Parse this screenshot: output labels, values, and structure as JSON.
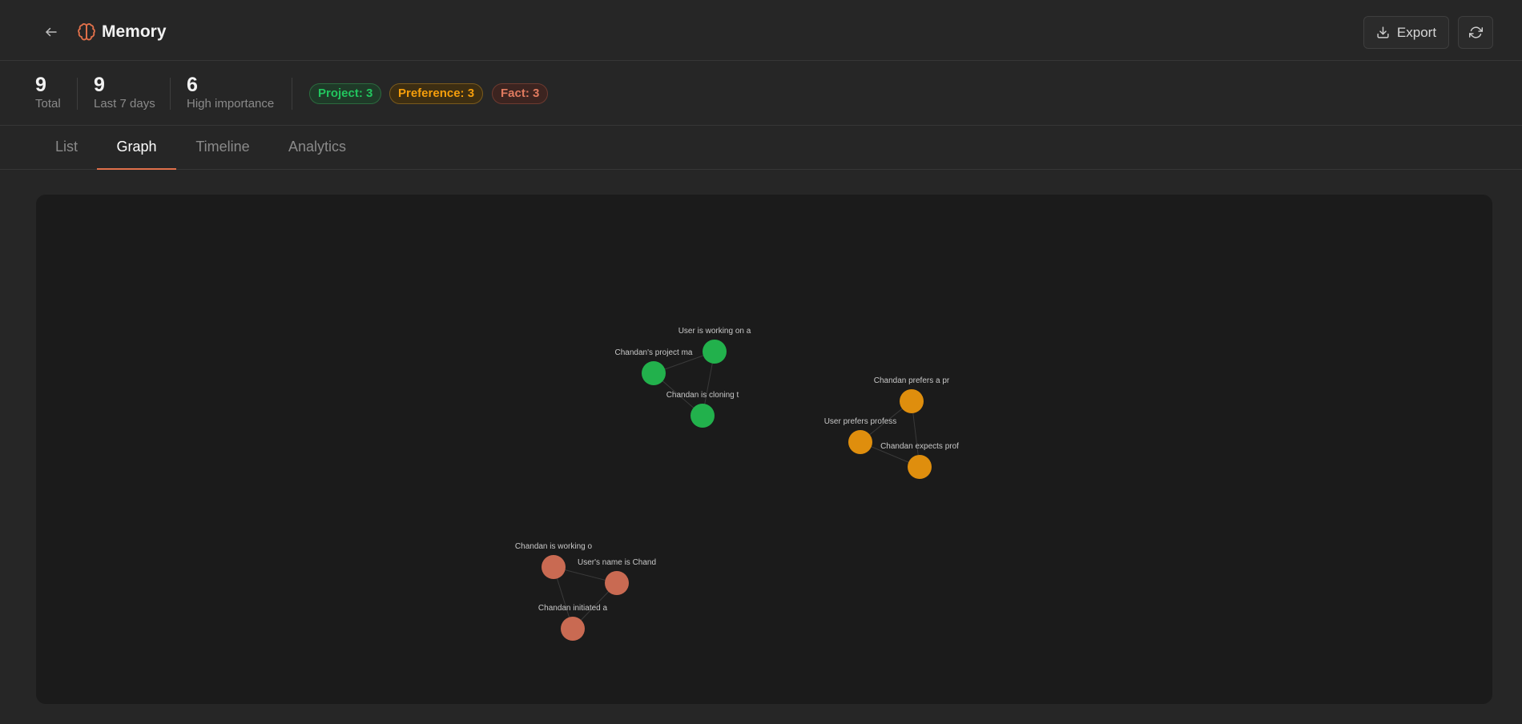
{
  "header": {
    "title": "Memory",
    "back_icon": "arrow-left-icon",
    "brand_icon": "brain-icon",
    "export_label": "Export",
    "export_icon": "download-icon",
    "refresh_icon": "refresh-icon",
    "accent_color": "#e0704a"
  },
  "stats": [
    {
      "value": "9",
      "label": "Total"
    },
    {
      "value": "9",
      "label": "Last 7 days"
    },
    {
      "value": "6",
      "label": "High importance"
    }
  ],
  "badges": {
    "project": "Project: 3",
    "preference": "Preference: 3",
    "fact": "Fact: 3"
  },
  "tabs": [
    {
      "label": "List",
      "active": false
    },
    {
      "label": "Graph",
      "active": true
    },
    {
      "label": "Timeline",
      "active": false
    },
    {
      "label": "Analytics",
      "active": false
    }
  ],
  "graph": {
    "colors": {
      "project": "#22b14c",
      "preference": "#df8e0d",
      "fact": "#c96a52",
      "edge": "#3a3a3a"
    },
    "nodes": [
      {
        "label": "User is working on a",
        "category": "project"
      },
      {
        "label": "Chandan's project ma",
        "category": "project"
      },
      {
        "label": "Chandan is cloning t",
        "category": "project"
      },
      {
        "label": "Chandan prefers a pr",
        "category": "preference"
      },
      {
        "label": "User prefers profess",
        "category": "preference"
      },
      {
        "label": "Chandan expects prof",
        "category": "preference"
      },
      {
        "label": "Chandan is working o",
        "category": "fact"
      },
      {
        "label": "User's name is Chand",
        "category": "fact"
      },
      {
        "label": "Chandan initiated a",
        "category": "fact"
      }
    ]
  }
}
